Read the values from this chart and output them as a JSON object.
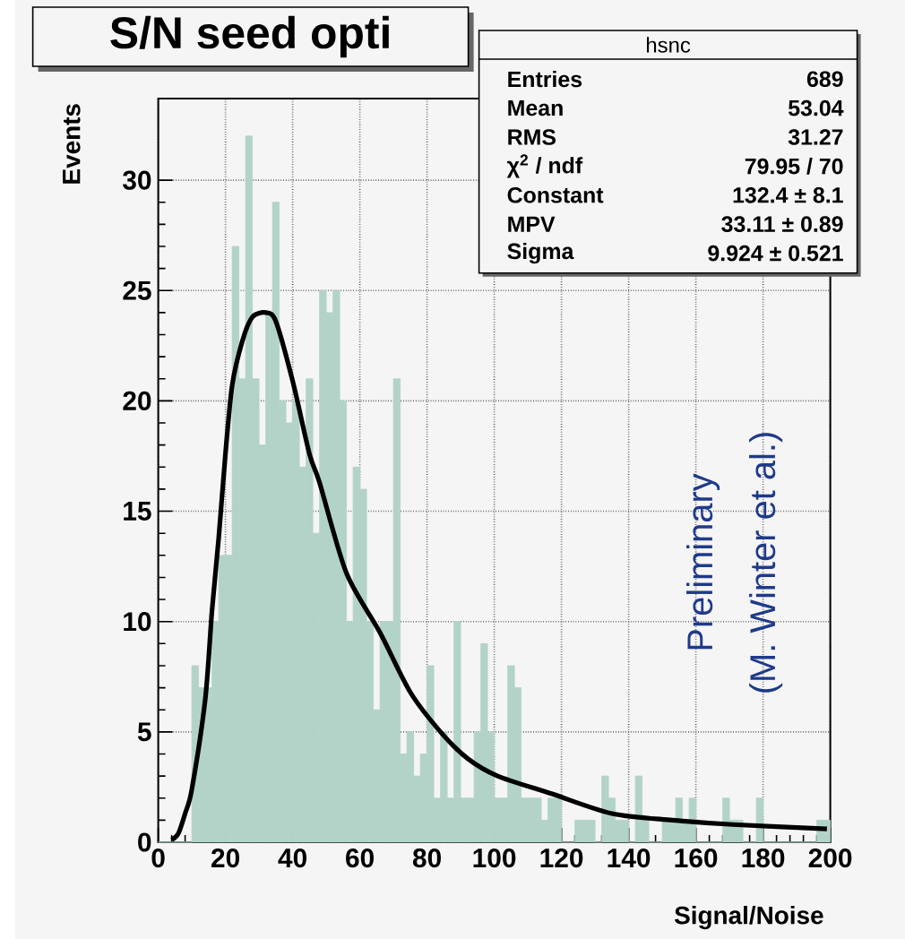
{
  "chart_data": {
    "type": "histogram",
    "title": "S/N seed opti",
    "xlabel": "Signal/Noise",
    "ylabel": "Events",
    "bins": [
      0,
      2,
      4,
      6,
      8,
      10,
      12,
      14,
      16,
      18,
      20,
      22,
      24,
      26,
      28,
      30,
      32,
      34,
      36,
      38,
      40,
      42,
      44,
      46,
      48,
      50,
      52,
      54,
      56,
      58,
      60,
      62,
      64,
      66,
      68,
      70,
      72,
      74,
      76,
      78,
      80,
      82,
      84,
      86,
      88,
      90,
      92,
      94,
      96,
      98,
      100,
      102,
      104,
      106,
      108,
      110,
      112,
      114,
      116,
      118,
      120,
      122,
      124,
      126,
      128,
      130,
      132,
      134,
      136,
      138,
      140,
      142,
      144,
      146,
      148,
      150,
      152,
      154,
      156,
      158,
      160,
      162,
      164,
      166,
      168,
      170,
      172,
      174,
      176,
      178,
      180,
      182,
      184,
      186,
      188,
      190,
      192,
      194,
      196,
      198,
      200
    ],
    "series": [
      {
        "color": "#b3d3c9",
        "values": [
          0,
          0,
          0,
          0,
          0,
          8,
          7,
          7,
          10,
          13,
          13,
          27,
          21,
          32,
          21,
          18,
          24,
          29,
          20,
          19,
          20,
          17,
          21,
          14,
          25,
          24,
          25,
          20,
          10,
          17,
          16,
          10,
          6,
          10,
          10,
          21,
          4,
          5,
          3,
          4,
          8,
          2,
          5,
          2,
          10,
          2,
          2,
          5,
          9,
          5,
          2,
          2,
          8,
          7,
          2,
          2,
          2,
          1,
          2,
          2,
          0,
          0,
          1,
          1,
          1,
          0,
          3,
          2,
          1,
          1,
          0,
          3,
          1,
          0,
          0,
          1,
          1,
          2,
          1,
          2,
          0,
          0,
          0,
          0,
          2,
          1,
          1,
          0,
          0,
          2,
          0,
          0,
          0,
          0,
          0,
          0,
          0,
          0,
          1,
          1
        ]
      },
      {
        "type": "line",
        "color": "#000000",
        "x": [
          4,
          6,
          8,
          10,
          14,
          16,
          18,
          20,
          22,
          25,
          28,
          32,
          35,
          40,
          45,
          48,
          56,
          66,
          75,
          84,
          92,
          101,
          117,
          135,
          153,
          171,
          199
        ],
        "values": [
          0.1,
          0.4,
          1.3,
          2.4,
          6.5,
          10.5,
          13.8,
          17.6,
          20.7,
          22.7,
          23.8,
          24,
          23.6,
          20.9,
          17.6,
          16.3,
          12.2,
          9.5,
          6.8,
          5,
          3.8,
          3.0,
          2.2,
          1.3,
          1.0,
          0.8,
          0.6
        ]
      }
    ],
    "xlim": [
      0,
      200
    ],
    "ylim": [
      0,
      33.7
    ],
    "xticks": [
      0,
      20,
      40,
      60,
      80,
      100,
      120,
      140,
      160,
      180,
      200
    ],
    "yticks": [
      0,
      5,
      10,
      15,
      20,
      25,
      30
    ],
    "grid": true,
    "marker": "none",
    "line_style": "solid",
    "annotations": [
      "hsnc",
      "Entries",
      "689",
      "Mean",
      "53.04",
      "RMS",
      "31.27",
      "χ$^{2}$ / ndf",
      "79.95 / 70",
      "Constant",
      "132.4 ± 8.1",
      "MPV",
      "33.11 ± 0.89",
      "Sigma",
      "9.924 ± 0.521",
      "Preliminary",
      "(M. Winter et al.)"
    ]
  }
}
